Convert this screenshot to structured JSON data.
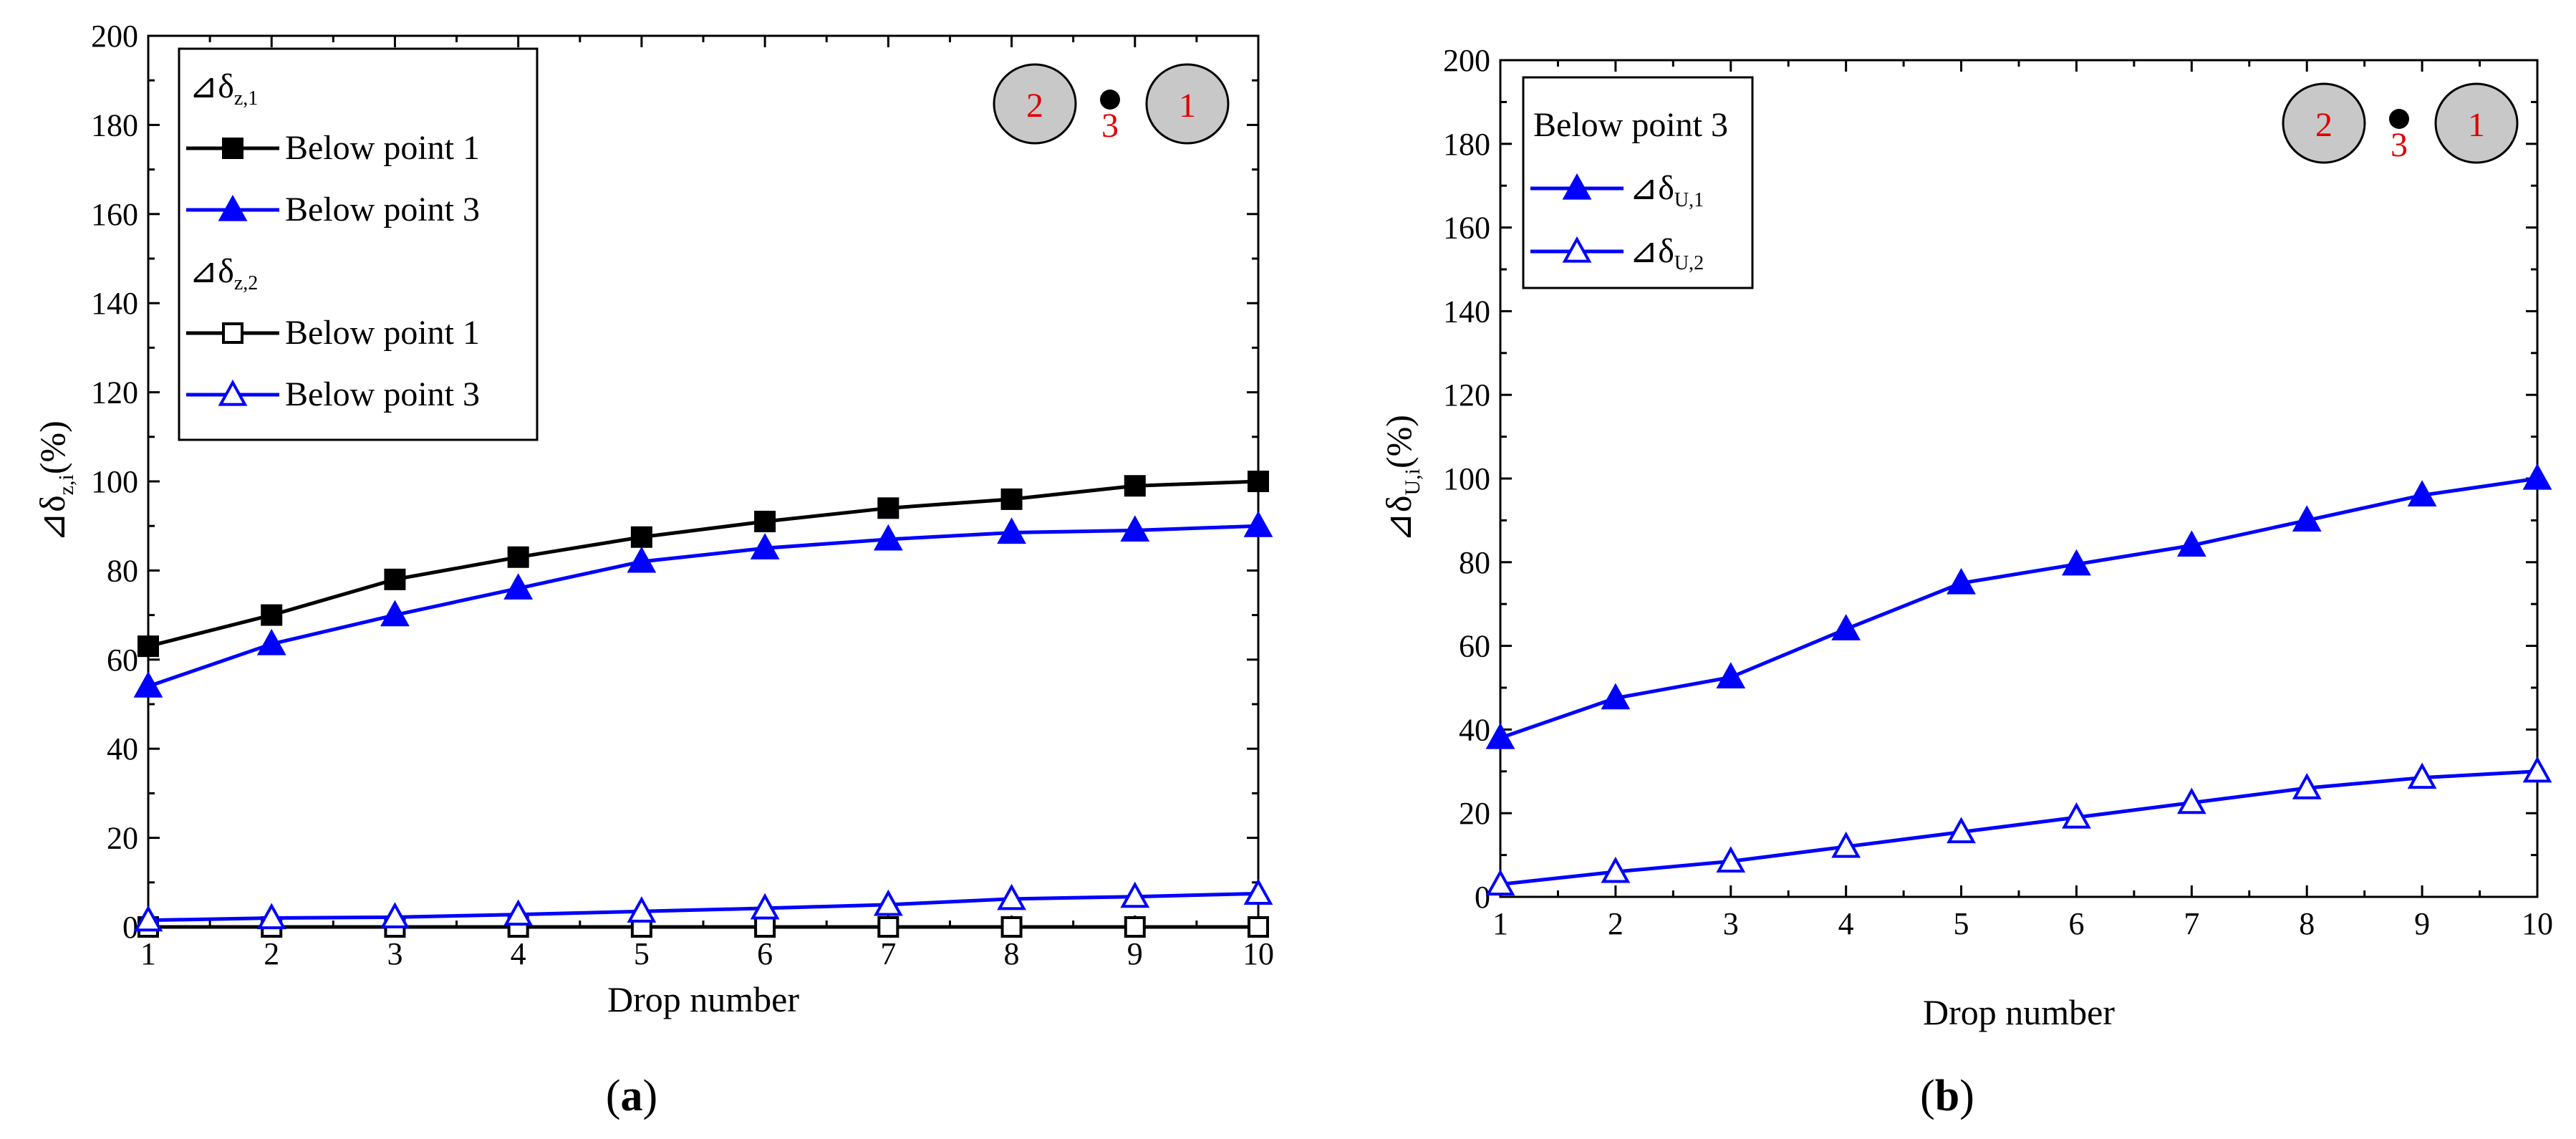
{
  "chart_data": [
    {
      "id": "a",
      "type": "line",
      "caption_open": "(",
      "caption_letter": "a",
      "caption_close": ")",
      "xlabel": "Drop number",
      "ylabel_main": "⊿δ",
      "ylabel_sub": "z,i",
      "ylabel_unit": "(%)",
      "xlim": [
        1,
        10
      ],
      "ylim": [
        0,
        200
      ],
      "x_ticks": [
        1,
        2,
        3,
        4,
        5,
        6,
        7,
        8,
        9,
        10
      ],
      "y_ticks": [
        0,
        20,
        40,
        60,
        80,
        100,
        120,
        140,
        160,
        180,
        200
      ],
      "legend": [
        {
          "kind": "header",
          "main": "⊿δ",
          "sub": "z,1"
        },
        {
          "kind": "entry",
          "series": 0
        },
        {
          "kind": "entry",
          "series": 1
        },
        {
          "kind": "header",
          "main": "⊿δ",
          "sub": "z,2"
        },
        {
          "kind": "entry",
          "series": 2
        },
        {
          "kind": "entry",
          "series": 3
        }
      ],
      "series": [
        {
          "name": "Below point 1",
          "label_main": "Below point 1",
          "color": "#000000",
          "marker": "square",
          "filled": true,
          "x": [
            1,
            2,
            3,
            4,
            5,
            6,
            7,
            8,
            9,
            10
          ],
          "values": [
            63,
            70,
            78,
            83,
            87.5,
            91,
            94,
            96,
            99,
            100
          ]
        },
        {
          "name": "Below point 3",
          "label_main": "Below point 3",
          "color": "#0000ff",
          "marker": "triangle",
          "filled": true,
          "x": [
            1,
            2,
            3,
            4,
            5,
            6,
            7,
            8,
            9,
            10
          ],
          "values": [
            54,
            63.5,
            70,
            76,
            82,
            85,
            87,
            88.5,
            89,
            90
          ]
        },
        {
          "name": "Below point 1",
          "label_main": "Below point 1",
          "color": "#000000",
          "marker": "square",
          "filled": false,
          "x": [
            1,
            2,
            3,
            4,
            5,
            6,
            7,
            8,
            9,
            10
          ],
          "values": [
            0,
            0,
            0,
            0,
            0,
            0,
            0,
            0,
            0,
            0
          ]
        },
        {
          "name": "Below point 3",
          "label_main": "Below point 3",
          "color": "#0000ff",
          "marker": "triangle",
          "filled": false,
          "x": [
            1,
            2,
            3,
            4,
            5,
            6,
            7,
            8,
            9,
            10
          ],
          "values": [
            1.5,
            2,
            2.2,
            2.8,
            3.5,
            4.2,
            5,
            6.3,
            6.8,
            7.5
          ]
        }
      ],
      "diagram": {
        "left_label": "2",
        "center_label": "3",
        "right_label": "1"
      }
    },
    {
      "id": "b",
      "type": "line",
      "caption_open": "(",
      "caption_letter": "b",
      "caption_close": ")",
      "xlabel": "Drop number",
      "ylabel_main": "⊿δ",
      "ylabel_sub": "U,i",
      "ylabel_unit": "(%)",
      "xlim": [
        1,
        10
      ],
      "ylim": [
        0,
        200
      ],
      "x_ticks": [
        1,
        2,
        3,
        4,
        5,
        6,
        7,
        8,
        9,
        10
      ],
      "y_ticks": [
        0,
        20,
        40,
        60,
        80,
        100,
        120,
        140,
        160,
        180,
        200
      ],
      "legend": [
        {
          "kind": "header_plain",
          "text": "Below point 3"
        },
        {
          "kind": "entry",
          "series": 0
        },
        {
          "kind": "entry",
          "series": 1
        }
      ],
      "series": [
        {
          "name": "⊿δU,1",
          "label_main": "⊿δ",
          "label_sub": "U,1",
          "color": "#0000ff",
          "marker": "triangle",
          "filled": true,
          "x": [
            1,
            2,
            3,
            4,
            5,
            6,
            7,
            8,
            9,
            10
          ],
          "values": [
            38,
            47.5,
            52.5,
            64,
            75,
            79.5,
            84,
            90,
            96,
            100
          ]
        },
        {
          "name": "⊿δU,2",
          "label_main": "⊿δ",
          "label_sub": "U,2",
          "color": "#0000ff",
          "marker": "triangle",
          "filled": false,
          "x": [
            1,
            2,
            3,
            4,
            5,
            6,
            7,
            8,
            9,
            10
          ],
          "values": [
            3,
            6,
            8.5,
            12,
            15.5,
            19,
            22.5,
            26,
            28.5,
            30
          ]
        }
      ],
      "diagram": {
        "left_label": "2",
        "center_label": "3",
        "right_label": "1"
      }
    }
  ]
}
